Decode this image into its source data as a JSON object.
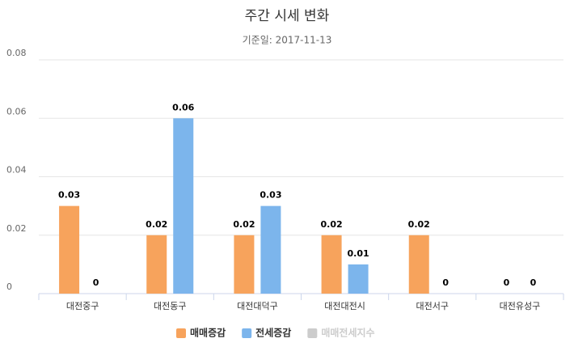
{
  "chart_data": {
    "type": "bar",
    "title": "주간 시세 변화",
    "subtitle": "기준일: 2017-11-13",
    "categories": [
      "대전중구",
      "대전동구",
      "대전대덕구",
      "대전대전시",
      "대전서구",
      "대전유성구"
    ],
    "series": [
      {
        "name": "매매증감",
        "color": "#f7a35c",
        "values": [
          0.03,
          0.02,
          0.02,
          0.02,
          0.02,
          0
        ]
      },
      {
        "name": "전세증감",
        "color": "#7cb5ec",
        "values": [
          0,
          0.06,
          0.03,
          0.01,
          0,
          0
        ]
      },
      {
        "name": "매매전세지수",
        "color": "#cccccc",
        "visible": false
      }
    ],
    "ylim": [
      0,
      0.08
    ],
    "yticks": [
      0,
      0.02,
      0.04,
      0.06,
      0.08
    ],
    "grid": true,
    "legend": "bottom"
  }
}
